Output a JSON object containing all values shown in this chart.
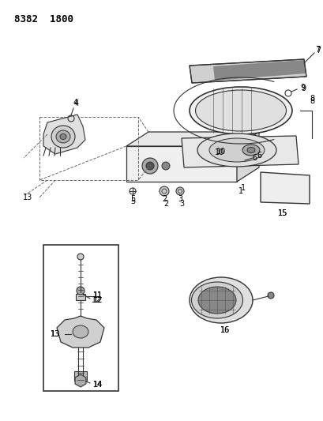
{
  "title": "8382 1800",
  "bg_color": "#ffffff",
  "line_color": "#333333",
  "dash_color": "#666666",
  "label_color": "#000000"
}
